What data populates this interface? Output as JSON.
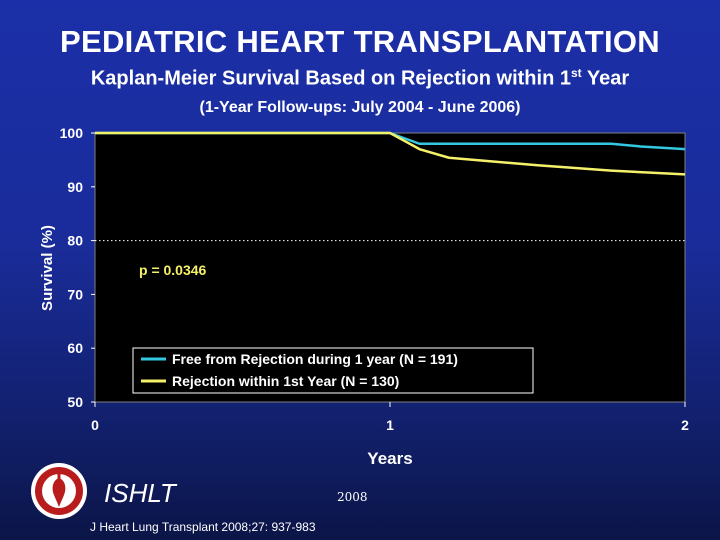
{
  "header": {
    "title": "PEDIATRIC HEART TRANSPLANTATION",
    "subtitle_main": "Kaplan-Meier Survival Based on Rejection within 1",
    "subtitle_sup": "st",
    "subtitle_end": " Year",
    "subsubtitle": "(1-Year Follow-ups: July 2004 - June 2006)"
  },
  "chart_data": {
    "type": "line",
    "ylabel": "Survival (%)",
    "xlabel": "Years",
    "xlim": [
      0,
      2
    ],
    "ylim": [
      50,
      100
    ],
    "x_ticks": [
      "0",
      "1",
      "2"
    ],
    "y_ticks": [
      "100",
      "90",
      "80",
      "70",
      "60",
      "50"
    ],
    "reference_line": 80,
    "annotation": "p = 0.0346",
    "series": [
      {
        "name": "Free from Rejection during 1 year (N = 191)",
        "color": "#33c8e0",
        "points": [
          [
            0,
            100
          ],
          [
            1.0,
            100
          ],
          [
            1.05,
            99
          ],
          [
            1.1,
            98
          ],
          [
            1.5,
            98
          ],
          [
            1.75,
            98
          ],
          [
            1.85,
            97.5
          ],
          [
            2.0,
            97
          ]
        ]
      },
      {
        "name": "Rejection within 1st Year  (N = 130)",
        "color": "#f5f06a",
        "points": [
          [
            0,
            100
          ],
          [
            1.0,
            100
          ],
          [
            1.05,
            98.5
          ],
          [
            1.1,
            97
          ],
          [
            1.2,
            95.4
          ],
          [
            1.5,
            94
          ],
          [
            1.75,
            93
          ],
          [
            2.0,
            92.3
          ]
        ]
      }
    ],
    "legend_position": "bottom-center",
    "plot_background": "#000000"
  },
  "footer": {
    "org": "ISHLT",
    "year": "2008",
    "citation": "J Heart Lung Transplant 2008;27: 937-983"
  }
}
